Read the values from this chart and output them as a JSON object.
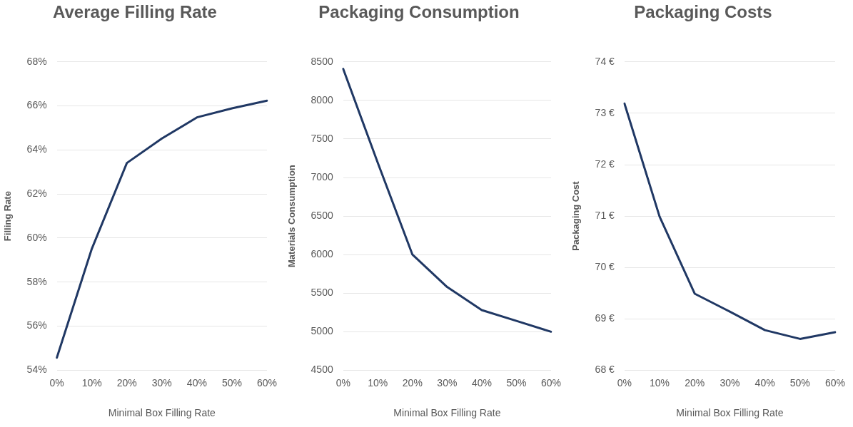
{
  "chart_data": [
    {
      "type": "line",
      "title": "Average Filling Rate",
      "xlabel": "Minimal Box Filling Rate",
      "ylabel": "Filling Rate",
      "categories": [
        "0%",
        "10%",
        "20%",
        "30%",
        "40%",
        "50%",
        "60%"
      ],
      "series": [
        {
          "color": "#203864",
          "values": [
            54.57,
            59.52,
            63.41,
            64.52,
            65.48,
            65.89,
            66.24
          ]
        }
      ],
      "ylim": [
        54,
        68
      ],
      "yticks": [
        {
          "value": 54,
          "label": "54%"
        },
        {
          "value": 56,
          "label": "56%"
        },
        {
          "value": 58,
          "label": "58%"
        },
        {
          "value": 60,
          "label": "60%"
        },
        {
          "value": 62,
          "label": "62%"
        },
        {
          "value": 64,
          "label": "64%"
        },
        {
          "value": 66,
          "label": "66%"
        },
        {
          "value": 68,
          "label": "68%"
        }
      ],
      "grid": "y",
      "marker": "none",
      "line_style": "solid"
    },
    {
      "type": "line",
      "title": "Packaging Consumption",
      "xlabel": "Minimal Box Filling Rate",
      "ylabel": "Materials Consumption",
      "categories": [
        "0%",
        "10%",
        "20%",
        "30%",
        "40%",
        "50%",
        "60%"
      ],
      "series": [
        {
          "color": "#203864",
          "values": [
            8410,
            7190,
            6000,
            5580,
            5280,
            5140,
            5000
          ]
        }
      ],
      "ylim": [
        4500,
        8500
      ],
      "yticks": [
        4500,
        5000,
        5500,
        6000,
        6500,
        7000,
        7500,
        8000,
        8500
      ],
      "grid": "y",
      "marker": "none",
      "line_style": "solid"
    },
    {
      "type": "line",
      "title": "Packaging Costs",
      "xlabel": "Minimal Box Filling Rate",
      "ylabel": "Packaging Cost",
      "categories": [
        "0%",
        "10%",
        "20%",
        "30%",
        "40%",
        "50%",
        "60%"
      ],
      "series": [
        {
          "color": "#203864",
          "values": [
            73.19,
            70.99,
            69.49,
            69.14,
            68.78,
            68.61,
            68.74
          ]
        }
      ],
      "ylim": [
        68,
        74
      ],
      "yticks": [
        {
          "value": 68,
          "label": "68 €"
        },
        {
          "value": 69,
          "label": "69 €"
        },
        {
          "value": 70,
          "label": "70 €"
        },
        {
          "value": 71,
          "label": "71 €"
        },
        {
          "value": 72,
          "label": "72 €"
        },
        {
          "value": 73,
          "label": "73 €"
        },
        {
          "value": 74,
          "label": "74 €"
        }
      ],
      "grid": "y",
      "marker": "none",
      "line_style": "solid"
    }
  ]
}
